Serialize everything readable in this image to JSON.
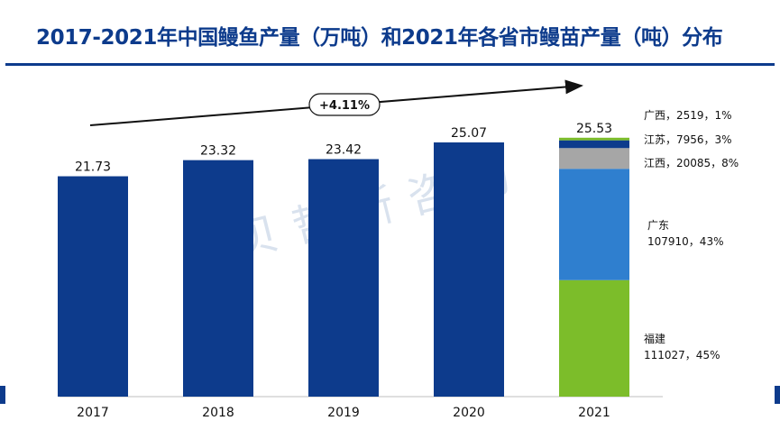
{
  "title": "2017-2021年中国鳗鱼产量（万吨）和2021年各省市鳗苗产量（吨）分布",
  "watermark": "贝哲斯咨询",
  "chart_data": {
    "type": "bar",
    "title": "2017-2021年中国鳗鱼产量（万吨）和2021年各省市鳗苗产量（吨）分布",
    "categories": [
      "2017",
      "2018",
      "2019",
      "2020",
      "2021"
    ],
    "values": [
      21.73,
      23.32,
      23.42,
      25.07,
      25.53
    ],
    "value_labels": [
      "21.73",
      "23.32",
      "23.42",
      "25.07",
      "25.53"
    ],
    "ylim": [
      0,
      30
    ],
    "growth_annotation": "+4.11%",
    "stacked_2021": [
      {
        "name": "福建",
        "tons": "111027",
        "share": "45%",
        "share_value": 45,
        "color": "#7cbd2a"
      },
      {
        "name": "广东",
        "tons": "107910",
        "share": "43%",
        "share_value": 43,
        "color": "#2f7fcf"
      },
      {
        "name": "江西",
        "tons": "20085",
        "share": "8%",
        "share_value": 8,
        "color": "#a6a6a6"
      },
      {
        "name": "江苏",
        "tons": "7956",
        "share": "3%",
        "share_value": 3,
        "color": "#0d3b8c"
      },
      {
        "name": "广西",
        "tons": "2519",
        "share": "1%",
        "share_value": 1,
        "color": "#7cbd2a"
      }
    ],
    "bar_color": "#0d3b8c"
  },
  "callouts": {
    "guangxi": "广西，2519，1%",
    "jiangsu": "江苏，7956，3%",
    "jiangxi": "江西，20085，8%",
    "guangdong_name": "广东",
    "guangdong_detail": "107910，43%",
    "fujian_name": "福建",
    "fujian_detail": "111027，45%"
  }
}
